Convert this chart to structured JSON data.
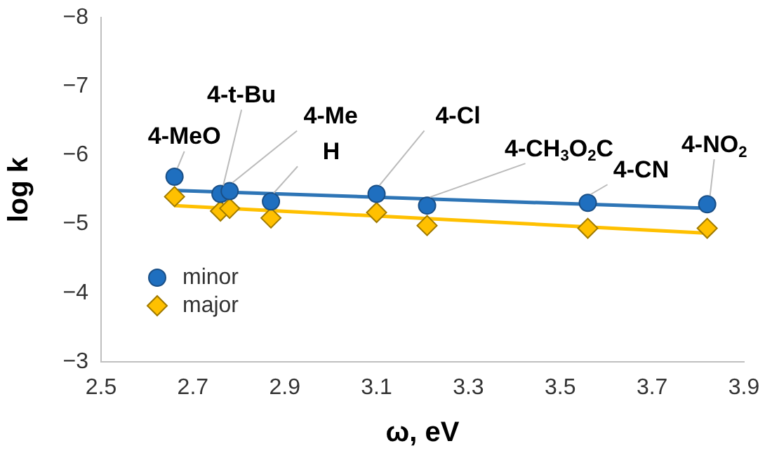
{
  "chart_data": {
    "type": "scatter",
    "xlabel": "ω, eV",
    "ylabel": "log k",
    "xlim": [
      2.5,
      3.9
    ],
    "xticks": [
      2.5,
      2.7,
      2.9,
      3.1,
      3.3,
      3.5,
      3.7,
      3.9
    ],
    "ylim": [
      -3,
      -8
    ],
    "yticks": [
      {
        "value": -8,
        "label": "−8"
      },
      {
        "value": -7,
        "label": "−7"
      },
      {
        "value": -6,
        "label": "−6"
      },
      {
        "value": -5,
        "label": "−5"
      },
      {
        "value": -4,
        "label": "−4"
      },
      {
        "value": -3,
        "label": "−3"
      }
    ],
    "grid": false,
    "legend": "bottom left",
    "series": [
      {
        "name": "minor",
        "color": "#1f6fbf",
        "marker": "circle",
        "x": [
          2.66,
          2.76,
          2.78,
          2.87,
          3.1,
          3.21,
          3.56,
          3.82
        ],
        "values": [
          -5.69,
          -5.44,
          -5.48,
          -5.33,
          -5.44,
          -5.27,
          -5.31,
          -5.29
        ]
      },
      {
        "name": "major",
        "color": "#ffc000",
        "marker": "diamond",
        "x": [
          2.66,
          2.76,
          2.78,
          2.87,
          3.1,
          3.21,
          3.56,
          3.82
        ],
        "values": [
          -5.4,
          -5.19,
          -5.23,
          -5.09,
          -5.17,
          -4.98,
          -4.94,
          -4.94
        ]
      },
      {
        "type": "line",
        "color": "#2e75b6",
        "marker": "none",
        "x": [
          2.66,
          3.82
        ],
        "values": [
          -5.49,
          -5.23
        ]
      },
      {
        "type": "line",
        "color": "#ffc000",
        "marker": "none",
        "x": [
          2.66,
          3.82
        ],
        "values": [
          -5.27,
          -4.87
        ]
      }
    ],
    "annotations": [
      {
        "text": "4-MeO",
        "x": 2.66,
        "y": -5.69
      },
      {
        "text": "4-t-Bu",
        "x": 2.76,
        "y": -5.44
      },
      {
        "text": "4-Me",
        "x": 2.78,
        "y": -5.48
      },
      {
        "text": "H",
        "x": 2.87,
        "y": -5.33
      },
      {
        "text": "4-Cl",
        "x": 3.1,
        "y": -5.44
      },
      {
        "text": "4-CH$_{3}$O$_{2}$C",
        "x": 3.21,
        "y": -5.27
      },
      {
        "text": "4-CN",
        "x": 3.56,
        "y": -5.31
      },
      {
        "text": "4-NO$_{2}$",
        "x": 3.82,
        "y": -5.29
      }
    ]
  }
}
